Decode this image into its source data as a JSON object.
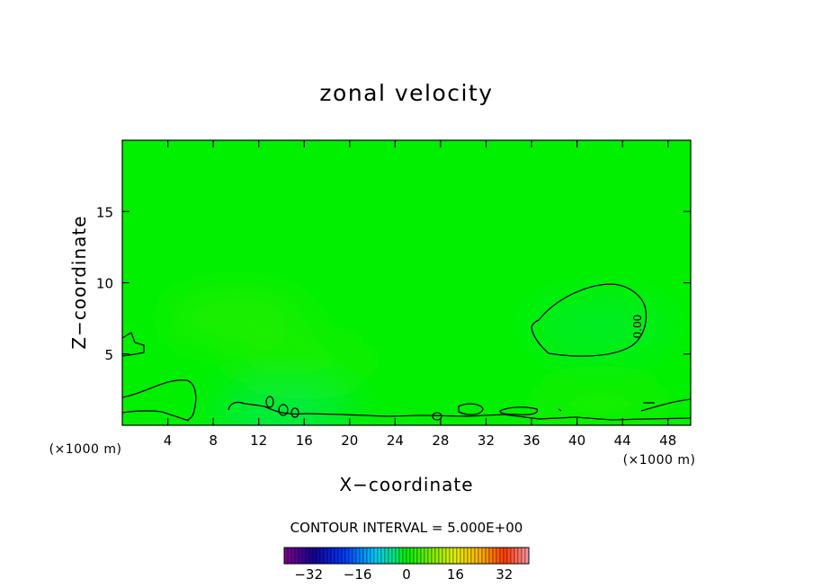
{
  "chart_data": {
    "type": "heatmap",
    "title": "zonal velocity",
    "xlabel": "X−coordinate",
    "ylabel": "Z−coordinate",
    "x_unit": "(×1000 m)",
    "y_unit": "(×1000 m)",
    "xlim": [
      0,
      50
    ],
    "ylim": [
      0,
      20
    ],
    "x_ticks": [
      4,
      8,
      12,
      16,
      20,
      24,
      28,
      32,
      36,
      40,
      44,
      48
    ],
    "y_ticks": [
      5,
      10,
      15
    ],
    "x_tick_labels": [
      "4",
      "8",
      "12",
      "16",
      "20",
      "24",
      "28",
      "32",
      "36",
      "40",
      "44",
      "48"
    ],
    "y_tick_labels": [
      "5",
      "10",
      "15"
    ],
    "contour_interval_text": "CONTOUR INTERVAL = 5.000E+00",
    "contour_level_label": "0.00",
    "background_value": 0,
    "anomalies": [
      {
        "name": "upper-left weak positive",
        "x": 10,
        "z": 7.5,
        "value": 2.5
      },
      {
        "name": "lower-middle weak positive",
        "x": 16,
        "z": 4.5,
        "value": 1.5
      },
      {
        "name": "right negative cell",
        "x": 42,
        "z": 7,
        "value": -1.5
      },
      {
        "name": "near-surface negative",
        "x": 14,
        "z": 0.7,
        "value": -2.5
      },
      {
        "name": "near-surface positive",
        "x": 42,
        "z": 1.5,
        "value": 1.5
      }
    ],
    "colorbar": {
      "ticks": [
        -32,
        -16,
        0,
        16,
        32
      ],
      "tick_labels": [
        "−32",
        "−16",
        "0",
        "16",
        "32"
      ],
      "range": [
        -40,
        40
      ]
    },
    "colors": {
      "field_base": "#00f000",
      "contour_line": "#000000"
    }
  }
}
